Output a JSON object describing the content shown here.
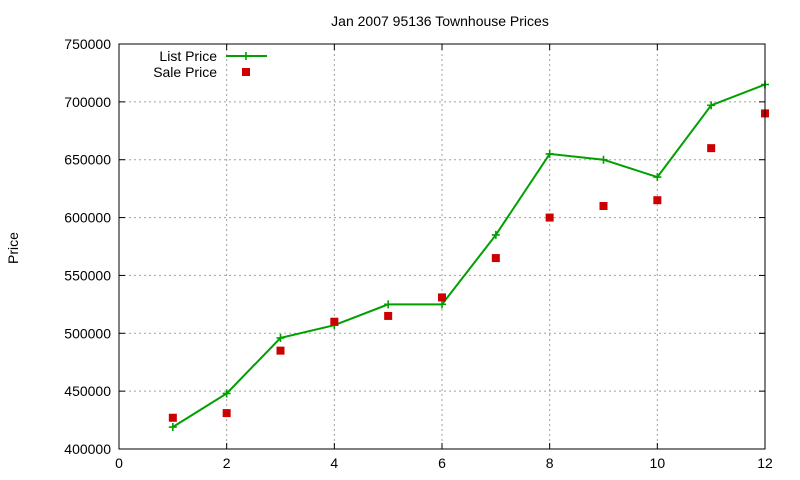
{
  "chart_data": {
    "type": "line",
    "title": "Jan 2007 95136 Townhouse Prices",
    "xlabel": "",
    "ylabel": "Price",
    "xlim": [
      0,
      12
    ],
    "ylim": [
      400000,
      750000
    ],
    "xticks": [
      0,
      2,
      4,
      6,
      8,
      10,
      12
    ],
    "yticks": [
      400000,
      450000,
      500000,
      550000,
      600000,
      650000,
      700000,
      750000
    ],
    "grid": true,
    "legend_position": "top-left",
    "series": [
      {
        "name": "List Price",
        "style": "line-with-plus-markers",
        "color": "#00a000",
        "x": [
          1,
          2,
          3,
          4,
          5,
          6,
          7,
          8,
          9,
          10,
          11,
          12
        ],
        "y": [
          419000,
          448000,
          496000,
          507000,
          525000,
          525000,
          585000,
          655000,
          650000,
          635000,
          697000,
          715000
        ]
      },
      {
        "name": "Sale Price",
        "style": "square-markers",
        "color": "#cc0000",
        "x": [
          1,
          2,
          3,
          4,
          5,
          6,
          7,
          8,
          9,
          10,
          11,
          12
        ],
        "y": [
          427000,
          431000,
          485000,
          510000,
          515000,
          531000,
          565000,
          600000,
          610000,
          615000,
          660000,
          690000
        ]
      }
    ]
  }
}
